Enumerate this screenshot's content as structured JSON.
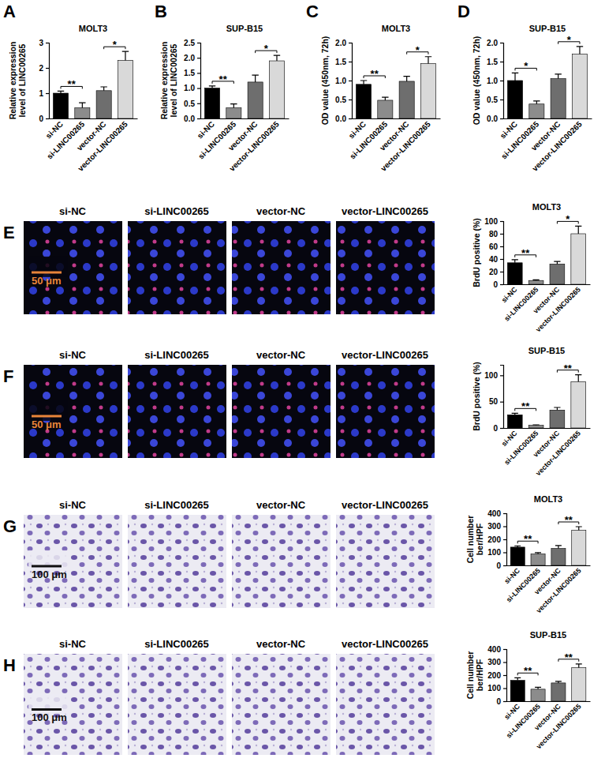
{
  "chart_data": [
    {
      "type": "bar",
      "panel": "A",
      "title": "MOLT3",
      "y_label": [
        "Relative expression",
        "level of LINC00265"
      ],
      "categories": [
        "si-NC",
        "si-LINC00265",
        "vector-NC",
        "vector-LINC00265"
      ],
      "values": [
        1.0,
        0.42,
        1.1,
        2.3
      ],
      "errors": [
        0.08,
        0.2,
        0.15,
        0.35
      ],
      "colors": [
        "#000000",
        "#8c8c8c",
        "#6e6e6e",
        "#d9d9d9"
      ],
      "ylim": [
        0,
        3
      ],
      "yticks": [
        0,
        1,
        2,
        3
      ],
      "annotations": [
        {
          "pair": [
            "si-NC",
            "si-LINC00265"
          ],
          "label": "**"
        },
        {
          "pair": [
            "vector-NC",
            "vector-LINC00265"
          ],
          "label": "*"
        }
      ]
    },
    {
      "type": "bar",
      "panel": "B",
      "title": "SUP-B15",
      "y_label": [
        "Relative expression",
        "level of LINC00265"
      ],
      "categories": [
        "si-NC",
        "si-LINC00265",
        "vector-NC",
        "vector-LINC00265"
      ],
      "values": [
        1.0,
        0.35,
        1.2,
        1.9
      ],
      "errors": [
        0.07,
        0.13,
        0.23,
        0.18
      ],
      "colors": [
        "#000000",
        "#8c8c8c",
        "#6e6e6e",
        "#d9d9d9"
      ],
      "ylim": [
        0,
        2.5
      ],
      "yticks": [
        {
          "value": 0,
          "label": "0.0"
        },
        0.5,
        {
          "value": 1,
          "label": "1.0"
        },
        1.5,
        {
          "value": 2,
          "label": "2.0"
        },
        2.5
      ],
      "annotations": [
        {
          "pair": [
            "si-NC",
            "si-LINC00265"
          ],
          "label": "**"
        },
        {
          "pair": [
            "vector-NC",
            "vector-LINC00265"
          ],
          "label": "*"
        }
      ]
    },
    {
      "type": "bar",
      "panel": "C",
      "title": "MOLT3",
      "y_label": [
        "OD value (450nm, 72h)"
      ],
      "categories": [
        "si-NC",
        "si-LINC00265",
        "vector-NC",
        "vector-LINC00265"
      ],
      "values": [
        0.9,
        0.48,
        0.98,
        1.45
      ],
      "errors": [
        0.1,
        0.08,
        0.13,
        0.18
      ],
      "colors": [
        "#000000",
        "#8c8c8c",
        "#6e6e6e",
        "#d9d9d9"
      ],
      "ylim": [
        0,
        2
      ],
      "yticks": [
        {
          "value": 0,
          "label": "0.0"
        },
        0.5,
        {
          "value": 1,
          "label": "1.0"
        },
        1.5,
        {
          "value": 2,
          "label": "2.0"
        }
      ],
      "annotations": [
        {
          "pair": [
            "si-NC",
            "si-LINC00265"
          ],
          "label": "**"
        },
        {
          "pair": [
            "vector-NC",
            "vector-LINC00265"
          ],
          "label": "*"
        }
      ]
    },
    {
      "type": "bar",
      "panel": "D",
      "title": "SUP-B15",
      "y_label": [
        "OD value (450nm, 72h)"
      ],
      "categories": [
        "si-NC",
        "si-LINC00265",
        "vector-NC",
        "vector-LINC00265"
      ],
      "values": [
        1.0,
        0.38,
        1.05,
        1.7
      ],
      "errors": [
        0.2,
        0.08,
        0.12,
        0.2
      ],
      "colors": [
        "#000000",
        "#8c8c8c",
        "#6e6e6e",
        "#d9d9d9"
      ],
      "ylim": [
        0,
        2
      ],
      "yticks": [
        {
          "value": 0,
          "label": "0.0"
        },
        0.5,
        {
          "value": 1,
          "label": "1.0"
        },
        1.5,
        {
          "value": 2,
          "label": "2.0"
        }
      ],
      "annotations": [
        {
          "pair": [
            "si-NC",
            "si-LINC00265"
          ],
          "label": "*"
        },
        {
          "pair": [
            "vector-NC",
            "vector-LINC00265"
          ],
          "label": "*"
        }
      ]
    },
    {
      "type": "bar",
      "title": "MOLT3",
      "y_label": [
        "BrdU positive (%)"
      ],
      "categories": [
        "si-NC",
        "si-LINC00265",
        "vector-NC",
        "vector-LINC00265"
      ],
      "values": [
        34,
        6,
        32,
        80
      ],
      "errors": [
        5,
        1,
        4,
        12
      ],
      "colors": [
        "#000000",
        "#8c8c8c",
        "#6e6e6e",
        "#d9d9d9"
      ],
      "ylim": [
        0,
        100
      ],
      "yticks": [
        0,
        20,
        40,
        60,
        80,
        100
      ],
      "annotations": [
        {
          "pair": [
            "si-NC",
            "si-LINC00265"
          ],
          "label": "**"
        },
        {
          "pair": [
            "vector-NC",
            "vector-LINC00265"
          ],
          "label": "*"
        }
      ]
    },
    {
      "type": "bar",
      "title": "SUP-B15",
      "y_label": [
        "BrdU positive (%)"
      ],
      "categories": [
        "si-NC",
        "si-LINC00265",
        "vector-NC",
        "vector-LINC00265"
      ],
      "values": [
        25,
        5,
        34,
        88
      ],
      "errors": [
        3,
        1,
        5,
        13
      ],
      "colors": [
        "#000000",
        "#8c8c8c",
        "#6e6e6e",
        "#d9d9d9"
      ],
      "ylim": [
        0,
        120
      ],
      "yticks": [
        0,
        50,
        100
      ],
      "annotations": [
        {
          "pair": [
            "si-NC",
            "si-LINC00265"
          ],
          "label": "**"
        },
        {
          "pair": [
            "vector-NC",
            "vector-LINC00265"
          ],
          "label": "**"
        }
      ]
    },
    {
      "type": "bar",
      "title": "MOLT3",
      "y_label": [
        "Cell number",
        "ber/HPF"
      ],
      "categories": [
        "si-NC",
        "si-LINC00265",
        "vector-NC",
        "vector-LINC00265"
      ],
      "values": [
        140,
        88,
        130,
        270
      ],
      "errors": [
        10,
        10,
        22,
        27
      ],
      "colors": [
        "#000000",
        "#8c8c8c",
        "#6e6e6e",
        "#d9d9d9"
      ],
      "ylim": [
        0,
        400
      ],
      "yticks": [
        0,
        100,
        200,
        300,
        400
      ],
      "annotations": [
        {
          "pair": [
            "si-NC",
            "si-LINC00265"
          ],
          "label": "**"
        },
        {
          "pair": [
            "vector-NC",
            "vector-LINC00265"
          ],
          "label": "**"
        }
      ]
    },
    {
      "type": "bar",
      "title": "SUP-B15",
      "y_label": [
        "Cell number",
        "ber/HPF"
      ],
      "categories": [
        "si-NC",
        "si-LINC00265",
        "vector-NC",
        "vector-LINC00265"
      ],
      "values": [
        160,
        92,
        140,
        258
      ],
      "errors": [
        20,
        15,
        12,
        28
      ],
      "colors": [
        "#000000",
        "#8c8c8c",
        "#6e6e6e",
        "#d9d9d9"
      ],
      "ylim": [
        0,
        400
      ],
      "yticks": [
        0,
        100,
        200,
        300,
        400
      ],
      "annotations": [
        {
          "pair": [
            "si-NC",
            "si-LINC00265"
          ],
          "label": "**"
        },
        {
          "pair": [
            "vector-NC",
            "vector-LINC00265"
          ],
          "label": "**"
        }
      ]
    }
  ],
  "image_panels": [
    {
      "panel": "E",
      "labels": [
        "si-NC",
        "si-LINC00265",
        "vector-NC",
        "vector-LINC00265"
      ],
      "scale_bar": "50 μm"
    },
    {
      "panel": "F",
      "labels": [
        "si-NC",
        "si-LINC00265",
        "vector-NC",
        "vector-LINC00265"
      ],
      "scale_bar": "50 μm"
    },
    {
      "panel": "G",
      "labels": [
        "si-NC",
        "si-LINC00265",
        "vector-NC",
        "vector-LINC00265"
      ],
      "scale_bar": "100 μm"
    },
    {
      "panel": "H",
      "labels": [
        "si-NC",
        "si-LINC00265",
        "vector-NC",
        "vector-LINC00265"
      ],
      "scale_bar": "100 μm"
    }
  ]
}
